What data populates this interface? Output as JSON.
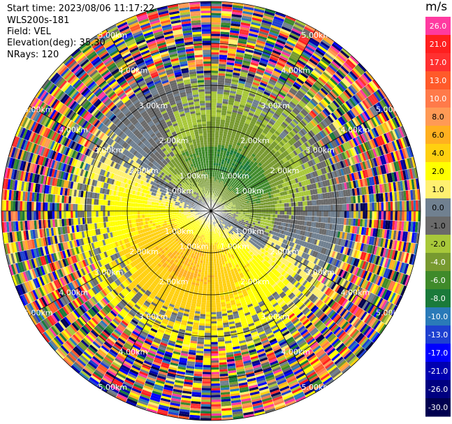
{
  "header": {
    "start_time": "Start time: 2023/08/06 11:17:22",
    "instrument": "WLS200s-181",
    "field": "Field: VEL",
    "elevation": "Elevation(deg): 35.30",
    "nrays": "NRays: 120"
  },
  "colorbar": {
    "unit": "m/s",
    "labels": [
      "26.0",
      "21.0",
      "17.0",
      "13.0",
      "10.0",
      "8.0",
      "6.0",
      "4.0",
      "2.0",
      "1.0",
      "0.0",
      "-1.0",
      "-2.0",
      "-4.0",
      "-6.0",
      "-8.0",
      "-10.0",
      "-13.0",
      "-17.0",
      "-21.0",
      "-26.0",
      "-30.0"
    ],
    "colors": [
      "#ff3aa0",
      "#ff1f1f",
      "#ff3030",
      "#ff5a2a",
      "#ff7a4a",
      "#ff9a55",
      "#ffb020",
      "#ffd010",
      "#ffff00",
      "#fff070",
      "#708090",
      "#6a6a6a",
      "#a8c83a",
      "#789a30",
      "#3f8a2a",
      "#1a7a3a",
      "#2a7ab8",
      "#1e40d0",
      "#0000ff",
      "#0000b0",
      "#000080",
      "#000050"
    ]
  },
  "chart_data": {
    "type": "heatmap",
    "projection": "polar-ppi",
    "field": "VEL",
    "unit": "m/s",
    "nrays": 120,
    "range_rings_km": [
      1.0,
      2.0,
      3.0,
      4.0,
      5.0
    ],
    "range_labels": [
      "1.00km",
      "2.00km",
      "3.00km",
      "4.00km",
      "5.00km"
    ],
    "max_range_km": 5.0,
    "grid": true,
    "description_regions": [
      {
        "ranges_km": [
          0,
          1.3
        ],
        "azimuth_deg": [
          280,
          80
        ],
        "velocity": -6.0
      },
      {
        "ranges_km": [
          0,
          1.3
        ],
        "azimuth_deg": [
          100,
          220
        ],
        "velocity": 8.0
      },
      {
        "ranges_km": [
          1.3,
          3.0
        ],
        "azimuth_deg": [
          0,
          100
        ],
        "velocity": -2.0
      },
      {
        "ranges_km": [
          1.3,
          3.0
        ],
        "azimuth_deg": [
          200,
          320
        ],
        "velocity": 2.0
      },
      {
        "ranges_km": [
          3.0,
          5.0
        ],
        "azimuth_deg": [
          0,
          360
        ],
        "velocity": "noise"
      }
    ]
  }
}
